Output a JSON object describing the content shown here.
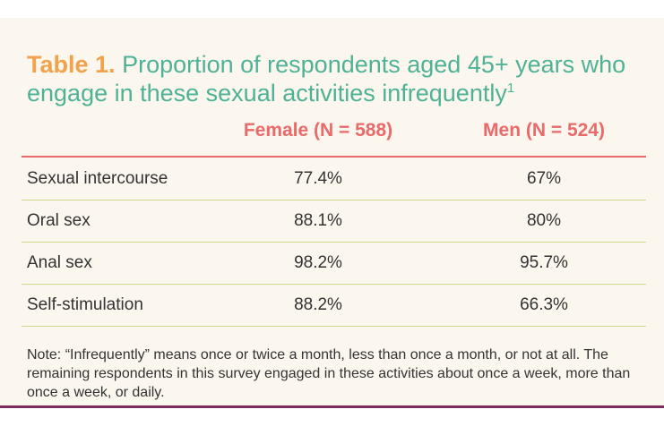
{
  "chart_data": {
    "type": "table",
    "title_label": "Table 1.",
    "title": "Proportion of respondents aged 45+ years who engage in these sexual activities infrequently",
    "title_footnote_marker": "1",
    "columns": [
      "Female (N = 588)",
      "Men (N = 524)"
    ],
    "rows": [
      {
        "activity": "Sexual intercourse",
        "female": "77.4%",
        "men": "67%"
      },
      {
        "activity": "Oral sex",
        "female": "88.1%",
        "men": "80%"
      },
      {
        "activity": "Anal sex",
        "female": "98.2%",
        "men": "95.7%"
      },
      {
        "activity": "Self-stimulation",
        "female": "88.2%",
        "men": "66.3%"
      }
    ],
    "note": "Note: “Infrequently” means once or twice a month, less than once a month, or not at all. The remaining respondents in this survey engaged in these activities about once a week, more than once a week, or daily."
  },
  "colors": {
    "background": "#fbf6ee",
    "title_label": "#f2a24a",
    "title_text": "#4fb296",
    "column_header": "#e86a6a",
    "header_rule": "#e86a6a",
    "row_rule": "#cfd98c",
    "bottom_rule": "#7b2d5d"
  }
}
